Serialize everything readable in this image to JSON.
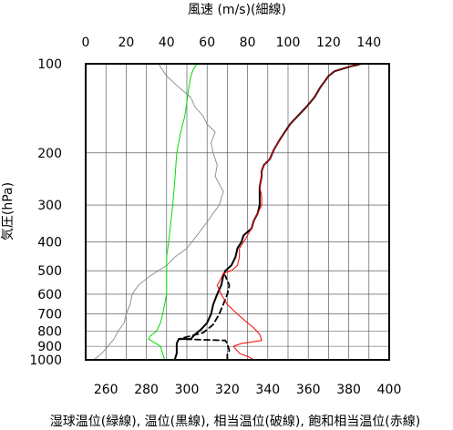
{
  "chart_data": {
    "type": "line",
    "top_axis_title": "風速 (m/s)(細線)",
    "bottom_axis_title": "湿球温位(緑線), 温位(黒線), 相当温位(破線), 飽和相当温位(赤線)",
    "y_axis_title": "気圧(hPa)",
    "y_scale": "log",
    "y_inverted": true,
    "ylim": [
      1000,
      100
    ],
    "y_ticks": [
      100,
      200,
      300,
      400,
      500,
      600,
      700,
      800,
      900,
      1000
    ],
    "bottom_xlim": [
      250,
      400
    ],
    "bottom_ticks": [
      260,
      280,
      300,
      320,
      340,
      360,
      380,
      400
    ],
    "top_xlim": [
      0,
      150
    ],
    "top_ticks": [
      0,
      20,
      40,
      60,
      80,
      100,
      120,
      140
    ],
    "grid": true,
    "series": [
      {
        "key": "wind",
        "axis": "top",
        "color": "#888888",
        "width": 0.9,
        "dash": "",
        "points": [
          [
            4,
            1000
          ],
          [
            8,
            950
          ],
          [
            11,
            900
          ],
          [
            14,
            850
          ],
          [
            16,
            800
          ],
          [
            19,
            750
          ],
          [
            20,
            700
          ],
          [
            22,
            650
          ],
          [
            23,
            600
          ],
          [
            26,
            560
          ],
          [
            32,
            520
          ],
          [
            40,
            480
          ],
          [
            44,
            450
          ],
          [
            50,
            420
          ],
          [
            55,
            380
          ],
          [
            59,
            350
          ],
          [
            63,
            320
          ],
          [
            66,
            300
          ],
          [
            68,
            270
          ],
          [
            64,
            240
          ],
          [
            65,
            220
          ],
          [
            63,
            200
          ],
          [
            62,
            185
          ],
          [
            64,
            170
          ],
          [
            60,
            160
          ],
          [
            58,
            150
          ],
          [
            54,
            140
          ],
          [
            52,
            130
          ],
          [
            46,
            120
          ],
          [
            40,
            110
          ],
          [
            38,
            105
          ],
          [
            36,
            100
          ]
        ]
      },
      {
        "key": "wet_bulb_theta",
        "axis": "bottom",
        "color": "#00dd00",
        "width": 1.0,
        "dash": "",
        "points": [
          [
            289,
            1000
          ],
          [
            288,
            950
          ],
          [
            287,
            900
          ],
          [
            281,
            850
          ],
          [
            282,
            830
          ],
          [
            285,
            800
          ],
          [
            287,
            750
          ],
          [
            288,
            700
          ],
          [
            289,
            650
          ],
          [
            290,
            600
          ],
          [
            290,
            550
          ],
          [
            290,
            500
          ],
          [
            290,
            450
          ],
          [
            291,
            400
          ],
          [
            292,
            350
          ],
          [
            293,
            300
          ],
          [
            294,
            250
          ],
          [
            295,
            200
          ],
          [
            297,
            170
          ],
          [
            299,
            150
          ],
          [
            300,
            135
          ],
          [
            301,
            120
          ],
          [
            302,
            110
          ],
          [
            303,
            105
          ],
          [
            305,
            100
          ]
        ]
      },
      {
        "key": "theta",
        "axis": "bottom",
        "color": "#000000",
        "width": 2.0,
        "dash": "",
        "points": [
          [
            294,
            1000
          ],
          [
            295,
            950
          ],
          [
            295,
            880
          ],
          [
            296,
            850
          ],
          [
            302,
            850
          ],
          [
            304,
            820
          ],
          [
            307,
            790
          ],
          [
            310,
            750
          ],
          [
            312,
            700
          ],
          [
            313,
            650
          ],
          [
            315,
            600
          ],
          [
            317,
            560
          ],
          [
            318,
            520
          ],
          [
            319,
            500
          ],
          [
            322,
            480
          ],
          [
            324,
            450
          ],
          [
            325,
            420
          ],
          [
            327,
            400
          ],
          [
            328,
            380
          ],
          [
            332,
            360
          ],
          [
            333,
            340
          ],
          [
            335,
            320
          ],
          [
            336,
            300
          ],
          [
            336,
            280
          ],
          [
            336,
            260
          ],
          [
            337,
            240
          ],
          [
            337,
            230
          ],
          [
            338,
            220
          ],
          [
            341,
            210
          ],
          [
            343,
            195
          ],
          [
            346,
            180
          ],
          [
            351,
            160
          ],
          [
            359,
            140
          ],
          [
            363,
            130
          ],
          [
            366,
            120
          ],
          [
            368,
            115
          ],
          [
            370,
            110
          ],
          [
            373,
            106
          ],
          [
            377,
            104
          ],
          [
            381,
            102
          ],
          [
            384,
            101
          ],
          [
            386,
            100
          ]
        ]
      },
      {
        "key": "equiv_theta",
        "axis": "bottom",
        "color": "#000000",
        "width": 1.8,
        "dash": "6,4",
        "points": [
          [
            320,
            1000
          ],
          [
            320,
            960
          ],
          [
            321,
            930
          ],
          [
            320,
            880
          ],
          [
            319,
            860
          ],
          [
            296,
            850
          ],
          [
            308,
            810
          ],
          [
            313,
            760
          ],
          [
            316,
            700
          ],
          [
            318,
            650
          ],
          [
            320,
            600
          ],
          [
            321,
            560
          ],
          [
            319,
            520
          ]
        ]
      },
      {
        "key": "sat_equiv_theta",
        "axis": "bottom",
        "color": "#ff0000",
        "width": 1.0,
        "dash": "",
        "points": [
          [
            333,
            1000
          ],
          [
            331,
            980
          ],
          [
            326,
            950
          ],
          [
            323,
            900
          ],
          [
            327,
            880
          ],
          [
            337,
            860
          ],
          [
            336,
            820
          ],
          [
            333,
            780
          ],
          [
            329,
            740
          ],
          [
            325,
            700
          ],
          [
            320,
            650
          ],
          [
            317,
            600
          ],
          [
            315,
            560
          ],
          [
            317,
            530
          ],
          [
            318,
            510
          ],
          [
            322,
            500
          ],
          [
            325,
            480
          ],
          [
            326,
            450
          ],
          [
            326,
            420
          ],
          [
            328,
            400
          ],
          [
            330,
            380
          ],
          [
            332,
            360
          ],
          [
            333,
            340
          ],
          [
            335,
            320
          ],
          [
            337,
            300
          ],
          [
            337,
            280
          ],
          [
            336,
            260
          ],
          [
            337,
            240
          ],
          [
            337,
            230
          ],
          [
            338,
            220
          ],
          [
            341,
            210
          ],
          [
            343,
            195
          ],
          [
            346,
            180
          ],
          [
            351,
            160
          ],
          [
            359,
            140
          ],
          [
            363,
            130
          ],
          [
            366,
            120
          ],
          [
            368,
            115
          ],
          [
            370,
            110
          ],
          [
            373,
            106
          ],
          [
            377,
            104
          ],
          [
            381,
            102
          ],
          [
            384,
            101
          ],
          [
            386,
            100
          ]
        ]
      },
      {
        "key": "theta_overlay",
        "axis": "bottom",
        "color": "#8b0000",
        "width": 1.0,
        "dash": "",
        "points": [
          [
            346,
            180
          ],
          [
            351,
            160
          ],
          [
            359,
            140
          ],
          [
            363,
            130
          ],
          [
            366,
            120
          ],
          [
            368,
            115
          ],
          [
            370,
            110
          ],
          [
            373,
            106
          ],
          [
            377,
            104
          ],
          [
            381,
            102
          ],
          [
            384,
            101
          ],
          [
            386,
            100
          ]
        ]
      }
    ]
  }
}
